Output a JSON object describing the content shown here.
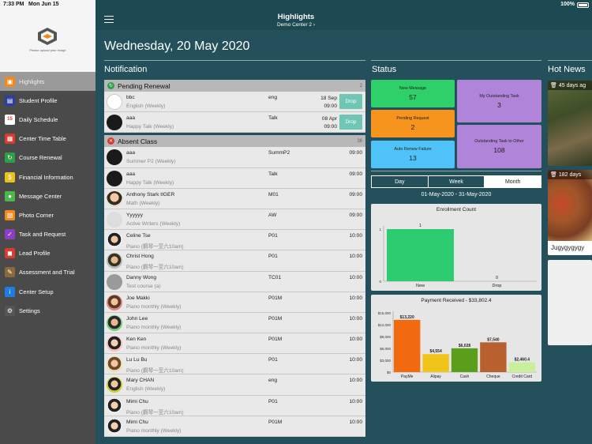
{
  "statusbar": {
    "time": "7:33 PM",
    "date": "Mon Jun 15",
    "battery": "100%"
  },
  "sidebar": {
    "upload_text": "Please upload your image",
    "items": [
      {
        "label": "Highlights",
        "icon": "highlights-icon",
        "color": "#f08a1c",
        "active": true
      },
      {
        "label": "Student Profile",
        "icon": "id-card-icon",
        "color": "#2c3e9e"
      },
      {
        "label": "Daily Schedule",
        "icon": "calendar-icon",
        "color": "#ffffff"
      },
      {
        "label": "Center Time Table",
        "icon": "timetable-icon",
        "color": "#d93b2f"
      },
      {
        "label": "Course Renewal",
        "icon": "renew-icon",
        "color": "#2f9e46"
      },
      {
        "label": "Financial Information",
        "icon": "coin-icon",
        "color": "#e8c21a"
      },
      {
        "label": "Message Center",
        "icon": "chat-icon",
        "color": "#4cb84c"
      },
      {
        "label": "Photo Corner",
        "icon": "photo-icon",
        "color": "#f08a1c"
      },
      {
        "label": "Task and Request",
        "icon": "checkbox-icon",
        "color": "#8b3fc2"
      },
      {
        "label": "Lead Profile",
        "icon": "lead-icon",
        "color": "#d93b2f"
      },
      {
        "label": "Assessment and Trial",
        "icon": "pencil-icon",
        "color": "#8a6a3a"
      },
      {
        "label": "Center Setup",
        "icon": "info-icon",
        "color": "#1f7de0"
      },
      {
        "label": "Settings",
        "icon": "gear-icon",
        "color": "#555555"
      }
    ]
  },
  "header": {
    "title": "Highlights",
    "subtitle": "Demo Center 2 ›"
  },
  "main": {
    "date": "Wednesday, 20 May 2020"
  },
  "notification": {
    "title": "Notification",
    "pending": {
      "label": "Pending Renewal",
      "count": "2",
      "rows": [
        {
          "name": "bbc",
          "course": "English (Weekly)",
          "cls": "eng",
          "date": "18 Sep",
          "time": "09:00",
          "drop": "Drop"
        },
        {
          "name": "aaa",
          "course": "Happy Talk (Weekly)",
          "cls": "Talk",
          "date": "08 Apr",
          "time": "09:00",
          "drop": "Drop"
        }
      ]
    },
    "absent": {
      "label": "Absent Class",
      "count": "36",
      "rows": [
        {
          "name": "aaa",
          "course": "Summer P2 (Weekly)",
          "cls": "SummP2",
          "time": "09:00"
        },
        {
          "name": "aaa",
          "course": "Happy Talk (Weekly)",
          "cls": "Talk",
          "time": "09:00"
        },
        {
          "name": "Anthony Stark tIGER",
          "course": "Math (Weekly)",
          "cls": "M01",
          "time": "09:00"
        },
        {
          "name": "Yyyyyy",
          "course": "Active Writers (Weekly)",
          "cls": "AW",
          "time": "09:00"
        },
        {
          "name": "Celine Tse",
          "course": "Piano (鋼琴一至六10am)",
          "cls": "P01",
          "time": "10:00"
        },
        {
          "name": "Christ Hong",
          "course": "Piano (鋼琴一至六10am)",
          "cls": "P01",
          "time": "10:00"
        },
        {
          "name": "Danny Wong",
          "course": "Test course (a)",
          "cls": "TC01",
          "time": "10:00"
        },
        {
          "name": "Joe Makki",
          "course": "Piano monthly (Weekly)",
          "cls": "P01M",
          "time": "10:00"
        },
        {
          "name": "John Lee",
          "course": "Piano monthly (Weekly)",
          "cls": "P01M",
          "time": "10:00"
        },
        {
          "name": "Ken Ken",
          "course": "Piano monthly (Weekly)",
          "cls": "P01M",
          "time": "10:00"
        },
        {
          "name": "Lu Lu Bu",
          "course": "Piano (鋼琴一至六10am)",
          "cls": "P01",
          "time": "10:00"
        },
        {
          "name": "Mary CHAN",
          "course": "English (Weekly)",
          "cls": "eng",
          "time": "10:00"
        },
        {
          "name": "Mimi Chu",
          "course": "Piano (鋼琴一至六10am)",
          "cls": "P01",
          "time": "10:00"
        },
        {
          "name": "Mimi Chu",
          "course": "Piano monthly (Weekly)",
          "cls": "P01M",
          "time": "10:00"
        }
      ]
    }
  },
  "status": {
    "title": "Status",
    "tiles": {
      "new_message": {
        "label": "New Message",
        "value": "57"
      },
      "pending_request": {
        "label": "Pending Request",
        "value": "2"
      },
      "auto_renew": {
        "label": "Auto Renew Failure",
        "value": "13"
      },
      "my_outstanding": {
        "label": "My Outstanding Task",
        "value": "3"
      },
      "outstanding_other": {
        "label": "Outstanding Task to Other",
        "value": "108"
      }
    },
    "tabs": {
      "day": "Day",
      "week": "Week",
      "month": "Month"
    },
    "range": "01-May-2020 - 31-May-2020"
  },
  "hot_news": {
    "title": "Hot News",
    "items": [
      {
        "days": "45 days ag",
        "caption": ""
      },
      {
        "days": "182 days",
        "caption": "Jugygygygy"
      }
    ]
  },
  "chart_data": [
    {
      "type": "bar",
      "title": "Enrollment Count",
      "categories": [
        "New",
        "Drop"
      ],
      "values": [
        1,
        0
      ],
      "ylim": [
        0,
        1
      ],
      "yticks": [
        0,
        1
      ],
      "colors": [
        "#2ecc71",
        "#2ecc71"
      ]
    },
    {
      "type": "bar",
      "title": "Payment Received - $33,802.4",
      "categories": [
        "PayMe",
        "Alipay",
        "Cash",
        "Cheque",
        "Credit Card"
      ],
      "values": [
        13220,
        4554,
        6028,
        7540,
        2460.4
      ],
      "labels": [
        "$13,220",
        "$4,554",
        "$6,028",
        "$7,540",
        "$2,460.4"
      ],
      "ylim": [
        0,
        15000
      ],
      "yticks": [
        "$0",
        "$3,000",
        "$6,000",
        "$9,000",
        "$12,000",
        "$15,000"
      ],
      "colors": [
        "#f26a0f",
        "#f0c419",
        "#5a9e1c",
        "#b8612e",
        "#c8f09a"
      ]
    }
  ]
}
